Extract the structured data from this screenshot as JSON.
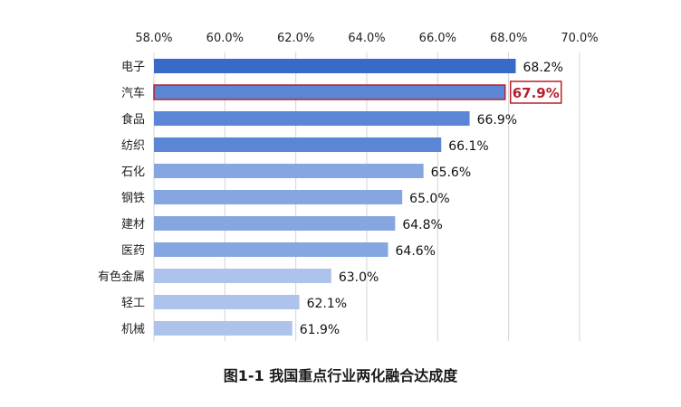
{
  "caption": "图1-1 我国重点行业两化融合达成度",
  "colors": {
    "dark_blue": "#3a6ac8",
    "mid_blue": "#5b86d6",
    "light_blue": "#86a6e1",
    "pale_blue": "#aec3eb",
    "highlight_border": "#b8202b",
    "highlight_text": "#b8202b",
    "grid": "#d4d4d4"
  },
  "chart_data": {
    "type": "bar",
    "orientation": "horizontal",
    "title": "",
    "xlabel": "",
    "ylabel": "",
    "xlim": [
      58.0,
      70.0
    ],
    "x_ticks": [
      "58.0%",
      "60.0%",
      "62.0%",
      "64.0%",
      "66.0%",
      "68.0%",
      "70.0%"
    ],
    "x_tick_values": [
      58,
      60,
      62,
      64,
      66,
      68,
      70
    ],
    "x_axis_position": "top",
    "grid": true,
    "categories": [
      "电子",
      "汽车",
      "食品",
      "纺织",
      "石化",
      "钢铁",
      "建材",
      "医药",
      "有色金属",
      "轻工",
      "机械"
    ],
    "values": [
      68.2,
      67.9,
      66.9,
      66.1,
      65.6,
      65.0,
      64.8,
      64.6,
      63.0,
      62.1,
      61.9
    ],
    "value_labels": [
      "68.2%",
      "67.9%",
      "66.9%",
      "66.1%",
      "65.6%",
      "65.0%",
      "64.8%",
      "64.6%",
      "63.0%",
      "62.1%",
      "61.9%"
    ],
    "bar_colors": [
      "#3a6ac8",
      "#5b86d6",
      "#5b86d6",
      "#5b86d6",
      "#86a6e1",
      "#86a6e1",
      "#86a6e1",
      "#86a6e1",
      "#aec3eb",
      "#aec3eb",
      "#aec3eb"
    ],
    "highlight_index": 1
  }
}
